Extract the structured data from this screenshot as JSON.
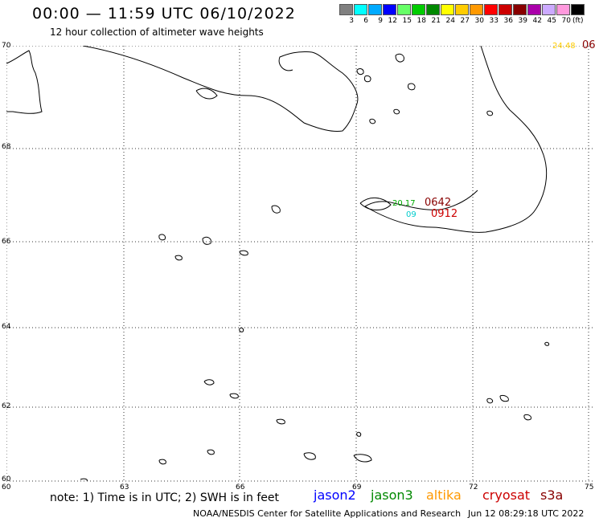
{
  "header": {
    "title": "00:00 — 11:59 UTC 06/10/2022",
    "subtitle": "12 hour collection of altimeter wave heights"
  },
  "colorbar": {
    "unit": "(ft)",
    "swatches": [
      "#808080",
      "#00ffff",
      "#00aaff",
      "#0000ff",
      "#66ff66",
      "#00cc00",
      "#008800",
      "#ffff00",
      "#ffcc00",
      "#ff9900",
      "#ff0000",
      "#cc0000",
      "#880000",
      "#aa00aa",
      "#ccaaff",
      "#ff99dd",
      "#000000"
    ],
    "labels": [
      "3",
      "6",
      "9",
      "12",
      "15",
      "18",
      "21",
      "24",
      "27",
      "30",
      "33",
      "36",
      "39",
      "42",
      "45",
      "70"
    ]
  },
  "axes": {
    "lat_labels": [
      "70",
      "68",
      "66",
      "64",
      "62",
      "60"
    ],
    "lon_labels": [
      "60",
      "63",
      "66",
      "69",
      "72",
      "75"
    ]
  },
  "track_labels": [
    {
      "text": "24.48",
      "color": "#ffcc00"
    },
    {
      "text": "06",
      "color": "#880000"
    },
    {
      "text": "20.17",
      "color": "#00aa00"
    },
    {
      "text": "0642",
      "color": "#880000"
    },
    {
      "text": "0912",
      "color": "#cc0000"
    },
    {
      "text": "09",
      "color": "#00cccc"
    }
  ],
  "footer": {
    "note": "note: 1) Time is in UTC; 2) SWH is in feet",
    "missions": [
      {
        "name": "jason2",
        "color": "#0000ff"
      },
      {
        "name": "jason3",
        "color": "#008800"
      },
      {
        "name": "altika",
        "color": "#ff9900"
      },
      {
        "name": "cryosat",
        "color": "#cc0000"
      },
      {
        "name": "s3a",
        "color": "#880000"
      }
    ],
    "credit": "NOAA/NESDIS Center for Satellite Applications and Research",
    "timestamp": "Jun 12 08:29:18 UTC 2022"
  }
}
